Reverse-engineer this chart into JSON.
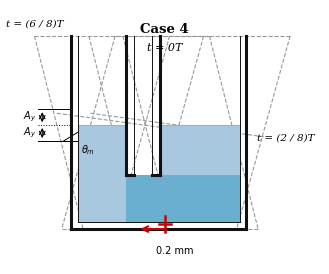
{
  "title": "Case 4",
  "subtitle": "t = 0T",
  "label_left": "t = (6 / 8)T",
  "label_right": "t = (2 / 8)T",
  "label_dim": "0.2 mm",
  "bg_color": "#ffffff",
  "water_color": "#a8c8e0",
  "water_color_dark": "#6aaed0",
  "wall_color": "#111111",
  "dashed_color": "#999999",
  "red_color": "#cc0000"
}
